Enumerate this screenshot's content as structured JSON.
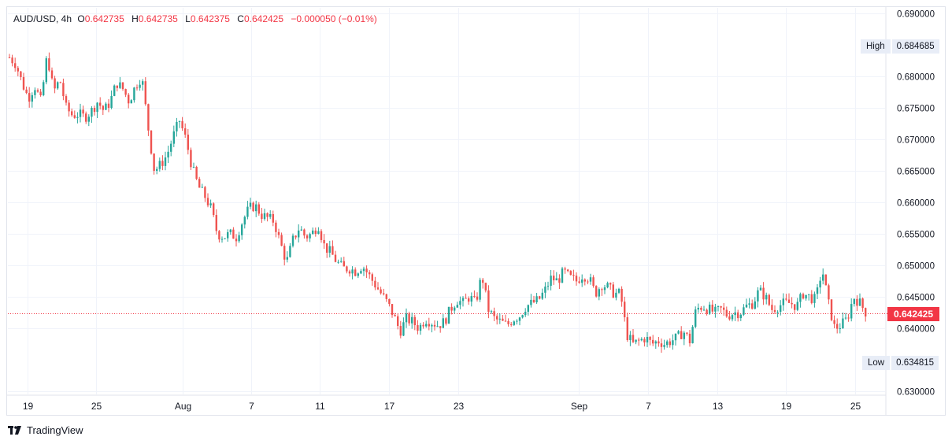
{
  "header": {
    "symbol": "AUD/USD, 4h",
    "open_label": "O",
    "open": "0.642735",
    "high_label": "H",
    "high": "0.642735",
    "low_label": "L",
    "low": "0.642375",
    "close_label": "C",
    "close": "0.642425",
    "change": "−0.000050 (−0.01%)"
  },
  "markers": {
    "high_label": "High",
    "high_value": "0.684685",
    "low_label": "Low",
    "low_value": "0.634815",
    "last_price": "0.642425"
  },
  "brand": {
    "name": "TradingView"
  },
  "colors": {
    "up": "#26a69a",
    "down": "#ef5350",
    "grid": "#f0f3fa",
    "last_price": "#f23645"
  },
  "chart_data": {
    "type": "candlestick",
    "title": "AUD/USD, 4h",
    "y_ticks": [
      "0.690000",
      "0.680000",
      "0.675000",
      "0.670000",
      "0.665000",
      "0.660000",
      "0.655000",
      "0.650000",
      "0.645000",
      "0.640000",
      "0.630000"
    ],
    "ylim": [
      0.629,
      0.691
    ],
    "x_ticks": [
      "19",
      "25",
      "Aug",
      "7",
      "11",
      "17",
      "23",
      "Sep",
      "7",
      "13",
      "19",
      "25"
    ],
    "grid": true,
    "high": 0.684685,
    "low": 0.634815,
    "last": 0.642425,
    "close_path": [
      [
        0,
        0.683
      ],
      [
        8,
        0.682
      ],
      [
        16,
        0.679
      ],
      [
        24,
        0.6765
      ],
      [
        32,
        0.6785
      ],
      [
        40,
        0.676
      ],
      [
        48,
        0.6835
      ],
      [
        56,
        0.6775
      ],
      [
        64,
        0.6795
      ],
      [
        72,
        0.675
      ],
      [
        80,
        0.6738
      ],
      [
        88,
        0.674
      ],
      [
        96,
        0.6735
      ],
      [
        104,
        0.6745
      ],
      [
        112,
        0.676
      ],
      [
        120,
        0.6745
      ],
      [
        128,
        0.676
      ],
      [
        136,
        0.679
      ],
      [
        144,
        0.678
      ],
      [
        152,
        0.676
      ],
      [
        160,
        0.6785
      ],
      [
        168,
        0.68
      ],
      [
        176,
        0.672
      ],
      [
        184,
        0.665
      ],
      [
        192,
        0.666
      ],
      [
        200,
        0.6675
      ],
      [
        208,
        0.6705
      ],
      [
        216,
        0.673
      ],
      [
        224,
        0.67
      ],
      [
        232,
        0.6655
      ],
      [
        240,
        0.6625
      ],
      [
        248,
        0.661
      ],
      [
        256,
        0.659
      ],
      [
        264,
        0.655
      ],
      [
        272,
        0.6545
      ],
      [
        280,
        0.655
      ],
      [
        288,
        0.6545
      ],
      [
        296,
        0.657
      ],
      [
        304,
        0.659
      ],
      [
        312,
        0.6595
      ],
      [
        320,
        0.658
      ],
      [
        328,
        0.6575
      ],
      [
        336,
        0.657
      ],
      [
        344,
        0.6535
      ],
      [
        352,
        0.6505
      ],
      [
        360,
        0.654
      ],
      [
        368,
        0.656
      ],
      [
        376,
        0.6545
      ],
      [
        384,
        0.655
      ],
      [
        392,
        0.6565
      ],
      [
        400,
        0.653
      ],
      [
        408,
        0.652
      ],
      [
        416,
        0.6505
      ],
      [
        424,
        0.6495
      ],
      [
        432,
        0.6495
      ],
      [
        440,
        0.649
      ],
      [
        448,
        0.65
      ],
      [
        456,
        0.6485
      ],
      [
        464,
        0.647
      ],
      [
        472,
        0.6455
      ],
      [
        480,
        0.644
      ],
      [
        488,
        0.642
      ],
      [
        496,
        0.6395
      ],
      [
        504,
        0.6415
      ],
      [
        512,
        0.641
      ],
      [
        520,
        0.64
      ],
      [
        528,
        0.6415
      ],
      [
        536,
        0.641
      ],
      [
        544,
        0.6405
      ],
      [
        552,
        0.641
      ],
      [
        560,
        0.643
      ],
      [
        568,
        0.6445
      ],
      [
        576,
        0.644
      ],
      [
        584,
        0.645
      ],
      [
        592,
        0.644
      ],
      [
        600,
        0.6485
      ],
      [
        608,
        0.643
      ],
      [
        616,
        0.6415
      ],
      [
        624,
        0.641
      ],
      [
        632,
        0.6405
      ],
      [
        640,
        0.6415
      ],
      [
        648,
        0.642
      ],
      [
        656,
        0.6435
      ],
      [
        664,
        0.644
      ],
      [
        672,
        0.6445
      ],
      [
        680,
        0.646
      ],
      [
        688,
        0.648
      ],
      [
        696,
        0.6475
      ],
      [
        704,
        0.649
      ],
      [
        712,
        0.648
      ],
      [
        720,
        0.6475
      ],
      [
        728,
        0.6485
      ],
      [
        736,
        0.648
      ],
      [
        744,
        0.6455
      ],
      [
        752,
        0.647
      ],
      [
        760,
        0.6465
      ],
      [
        768,
        0.6455
      ],
      [
        776,
        0.6455
      ],
      [
        784,
        0.639
      ],
      [
        792,
        0.6375
      ],
      [
        800,
        0.638
      ],
      [
        808,
        0.6385
      ],
      [
        816,
        0.6375
      ],
      [
        824,
        0.638
      ],
      [
        832,
        0.6375
      ],
      [
        840,
        0.638
      ],
      [
        848,
        0.6385
      ],
      [
        856,
        0.6395
      ],
      [
        864,
        0.638
      ],
      [
        872,
        0.643
      ],
      [
        880,
        0.6435
      ],
      [
        888,
        0.643
      ],
      [
        896,
        0.6425
      ],
      [
        904,
        0.643
      ],
      [
        912,
        0.642
      ],
      [
        920,
        0.6425
      ],
      [
        928,
        0.6425
      ],
      [
        936,
        0.6435
      ],
      [
        944,
        0.644
      ],
      [
        952,
        0.646
      ],
      [
        960,
        0.645
      ],
      [
        968,
        0.643
      ],
      [
        976,
        0.6435
      ],
      [
        984,
        0.644
      ],
      [
        992,
        0.644
      ],
      [
        1000,
        0.6435
      ],
      [
        1008,
        0.6455
      ],
      [
        1016,
        0.645
      ],
      [
        1024,
        0.6445
      ],
      [
        1032,
        0.6495
      ],
      [
        1040,
        0.644
      ],
      [
        1048,
        0.64
      ],
      [
        1056,
        0.6405
      ],
      [
        1064,
        0.6415
      ],
      [
        1072,
        0.645
      ],
      [
        1080,
        0.644
      ],
      [
        1088,
        0.64243
      ]
    ]
  }
}
